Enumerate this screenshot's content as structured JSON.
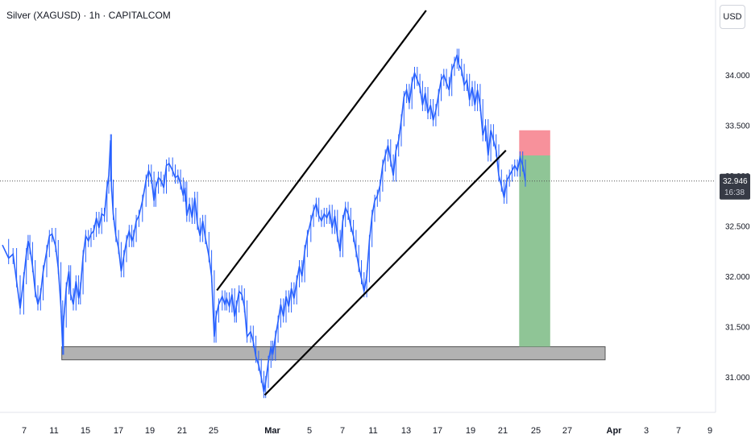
{
  "header": {
    "symbol_title": "Silver (XAGUSD) · 1h · CAPITALCOM",
    "currency_button": "USD"
  },
  "colors": {
    "candle": "#2962ff",
    "trendline": "#000000",
    "support_zone": "#b2b2b2",
    "stop_zone": "#f7919b",
    "target_zone": "#8fc596",
    "price_label_bg": "#363a45"
  },
  "price_tag": {
    "price": "32.946",
    "countdown": "16:38"
  },
  "chart_data": {
    "type": "line",
    "title": "",
    "xlabel": "",
    "ylabel": "",
    "x_axis": {
      "ticks": [
        "7",
        "11",
        "15",
        "17",
        "19",
        "21",
        "25",
        "Mar",
        "5",
        "7",
        "11",
        "13",
        "17",
        "19",
        "21",
        "25",
        "27",
        "Apr",
        "3",
        "7",
        "9"
      ],
      "range_days": [
        0,
        38
      ]
    },
    "y_axis": {
      "ticks": [
        "31.000",
        "31.500",
        "32.000",
        "32.500",
        "33.000",
        "33.500",
        "34.000"
      ],
      "range": [
        30.65,
        34.72
      ]
    },
    "grid": false,
    "series": [
      {
        "points": [
          [
            0.0,
            32.31
          ],
          [
            0.7,
            32.18
          ],
          [
            1.2,
            32.22
          ],
          [
            1.6,
            31.95
          ],
          [
            2.0,
            31.68
          ],
          [
            2.4,
            31.98
          ],
          [
            2.7,
            32.22
          ],
          [
            2.9,
            32.35
          ],
          [
            3.1,
            32.28
          ],
          [
            3.4,
            32.1
          ],
          [
            3.7,
            31.85
          ],
          [
            4.0,
            31.72
          ],
          [
            4.3,
            31.82
          ],
          [
            4.6,
            32.05
          ],
          [
            5.0,
            32.25
          ],
          [
            5.3,
            32.4
          ],
          [
            5.6,
            32.42
          ],
          [
            6.0,
            32.3
          ],
          [
            6.3,
            32.08
          ],
          [
            6.6,
            31.7
          ],
          [
            6.8,
            31.28
          ],
          [
            6.9,
            31.55
          ],
          [
            7.2,
            31.88
          ],
          [
            7.5,
            32.05
          ],
          [
            7.7,
            31.82
          ],
          [
            8.0,
            31.72
          ],
          [
            8.3,
            31.95
          ],
          [
            8.6,
            31.78
          ],
          [
            8.8,
            31.88
          ],
          [
            9.1,
            32.2
          ],
          [
            9.4,
            32.4
          ],
          [
            9.7,
            32.35
          ],
          [
            10.0,
            32.42
          ],
          [
            10.3,
            32.45
          ],
          [
            10.6,
            32.58
          ],
          [
            10.9,
            32.48
          ],
          [
            11.2,
            32.62
          ],
          [
            11.5,
            32.6
          ],
          [
            11.8,
            32.88
          ],
          [
            12.0,
            33.0
          ],
          [
            12.2,
            33.35
          ],
          [
            12.3,
            32.9
          ],
          [
            12.5,
            32.62
          ],
          [
            12.8,
            32.4
          ],
          [
            13.1,
            32.28
          ],
          [
            13.4,
            32.05
          ],
          [
            13.7,
            32.2
          ],
          [
            14.0,
            32.35
          ],
          [
            14.3,
            32.45
          ],
          [
            14.6,
            32.35
          ],
          [
            14.8,
            32.4
          ],
          [
            15.1,
            32.55
          ],
          [
            15.4,
            32.6
          ],
          [
            15.8,
            32.75
          ],
          [
            16.2,
            32.95
          ],
          [
            16.5,
            33.05
          ],
          [
            16.8,
            32.98
          ],
          [
            17.1,
            32.75
          ],
          [
            17.3,
            32.88
          ],
          [
            17.6,
            32.98
          ],
          [
            17.9,
            32.95
          ],
          [
            18.2,
            32.88
          ],
          [
            18.5,
            33.1
          ],
          [
            18.8,
            33.12
          ],
          [
            19.2,
            33.05
          ],
          [
            19.5,
            32.98
          ],
          [
            19.8,
            33.0
          ],
          [
            20.1,
            32.92
          ],
          [
            20.4,
            32.8
          ],
          [
            20.6,
            32.88
          ],
          [
            20.8,
            32.6
          ],
          [
            21.1,
            32.72
          ],
          [
            21.4,
            32.58
          ],
          [
            21.7,
            32.78
          ],
          [
            22.0,
            32.52
          ],
          [
            22.3,
            32.4
          ],
          [
            22.6,
            32.55
          ],
          [
            22.9,
            32.38
          ],
          [
            23.3,
            32.2
          ],
          [
            23.6,
            32.0
          ],
          [
            23.9,
            31.4
          ],
          [
            24.1,
            31.6
          ],
          [
            24.4,
            31.72
          ],
          [
            24.8,
            31.8
          ],
          [
            25.1,
            31.72
          ],
          [
            25.3,
            31.78
          ],
          [
            25.6,
            31.7
          ],
          [
            25.9,
            31.82
          ],
          [
            26.2,
            31.6
          ],
          [
            26.4,
            31.7
          ],
          [
            26.7,
            31.85
          ],
          [
            27.0,
            31.82
          ],
          [
            27.3,
            31.7
          ],
          [
            27.6,
            31.4
          ],
          [
            28.0,
            31.45
          ],
          [
            28.3,
            31.35
          ],
          [
            28.6,
            31.2
          ],
          [
            28.9,
            31.12
          ],
          [
            29.2,
            31.0
          ],
          [
            29.5,
            30.85
          ],
          [
            29.7,
            30.95
          ],
          [
            30.0,
            31.15
          ],
          [
            30.3,
            31.3
          ],
          [
            30.5,
            31.22
          ],
          [
            30.8,
            31.4
          ],
          [
            31.1,
            31.55
          ],
          [
            31.4,
            31.72
          ],
          [
            31.7,
            31.6
          ],
          [
            32.0,
            31.8
          ],
          [
            32.3,
            31.7
          ],
          [
            32.6,
            31.88
          ],
          [
            32.9,
            31.78
          ],
          [
            33.2,
            31.95
          ],
          [
            33.5,
            32.1
          ],
          [
            33.8,
            32.0
          ],
          [
            34.1,
            32.25
          ],
          [
            34.4,
            32.4
          ],
          [
            34.8,
            32.55
          ],
          [
            35.1,
            32.65
          ],
          [
            35.4,
            32.72
          ],
          [
            35.7,
            32.6
          ],
          [
            36.0,
            32.55
          ],
          [
            36.3,
            32.62
          ],
          [
            36.6,
            32.58
          ],
          [
            36.9,
            32.65
          ],
          [
            37.2,
            32.48
          ],
          [
            37.5,
            32.6
          ],
          [
            37.8,
            32.4
          ],
          [
            38.1,
            32.25
          ],
          [
            38.4,
            32.55
          ],
          [
            38.7,
            32.68
          ],
          [
            39.0,
            32.62
          ],
          [
            39.3,
            32.5
          ],
          [
            39.6,
            32.4
          ],
          [
            39.9,
            32.25
          ],
          [
            40.2,
            32.1
          ],
          [
            40.5,
            31.98
          ],
          [
            40.8,
            31.85
          ],
          [
            41.1,
            32.0
          ],
          [
            41.4,
            32.35
          ],
          [
            41.7,
            32.6
          ],
          [
            42.0,
            32.75
          ],
          [
            42.3,
            32.8
          ],
          [
            42.6,
            32.9
          ],
          [
            42.9,
            33.1
          ],
          [
            43.2,
            33.2
          ],
          [
            43.5,
            33.3
          ],
          [
            43.8,
            33.15
          ],
          [
            44.1,
            33.0
          ],
          [
            44.4,
            33.25
          ],
          [
            44.7,
            33.35
          ],
          [
            45.0,
            33.55
          ],
          [
            45.3,
            33.78
          ],
          [
            45.6,
            33.85
          ],
          [
            45.9,
            33.72
          ],
          [
            46.2,
            33.92
          ],
          [
            46.5,
            34.02
          ],
          [
            46.8,
            33.95
          ],
          [
            47.1,
            33.88
          ],
          [
            47.4,
            33.7
          ],
          [
            47.7,
            33.82
          ],
          [
            48.0,
            33.62
          ],
          [
            48.3,
            33.7
          ],
          [
            48.6,
            33.55
          ],
          [
            48.9,
            33.65
          ],
          [
            49.2,
            33.8
          ],
          [
            49.5,
            33.95
          ],
          [
            49.8,
            34.0
          ],
          [
            50.1,
            33.92
          ],
          [
            50.4,
            33.85
          ],
          [
            50.7,
            34.05
          ],
          [
            51.0,
            34.12
          ],
          [
            51.3,
            34.2
          ],
          [
            51.5,
            34.1
          ],
          [
            51.8,
            34.05
          ],
          [
            52.1,
            33.9
          ],
          [
            52.4,
            33.95
          ],
          [
            52.7,
            33.75
          ],
          [
            53.0,
            33.88
          ],
          [
            53.3,
            33.7
          ],
          [
            53.6,
            33.85
          ],
          [
            53.9,
            33.7
          ],
          [
            54.2,
            33.4
          ],
          [
            54.5,
            33.5
          ],
          [
            54.8,
            33.2
          ],
          [
            55.1,
            33.45
          ],
          [
            55.4,
            33.35
          ],
          [
            55.7,
            33.25
          ],
          [
            56.0,
            33.0
          ],
          [
            56.3,
            32.9
          ],
          [
            56.6,
            32.78
          ],
          [
            56.9,
            32.95
          ],
          [
            57.2,
            33.0
          ],
          [
            57.5,
            33.05
          ],
          [
            57.8,
            33.1
          ],
          [
            58.1,
            33.05
          ],
          [
            58.4,
            33.18
          ],
          [
            58.7,
            33.1
          ],
          [
            59.0,
            32.95
          ]
        ]
      }
    ],
    "overlays": {
      "channel_upper": [
        [
          24.2,
          31.86
        ],
        [
          47.8,
          34.64
        ]
      ],
      "channel_lower": [
        [
          29.6,
          30.82
        ],
        [
          56.8,
          33.25
        ]
      ],
      "support_zone": {
        "from_x": 6.7,
        "to_x": 68.0,
        "top": 31.3,
        "bottom": 31.17
      },
      "position": {
        "from_x": 58.3,
        "to_x": 61.8,
        "stop": 33.45,
        "entry": 33.2,
        "target": 31.3
      },
      "last_price_line": 32.946
    }
  }
}
